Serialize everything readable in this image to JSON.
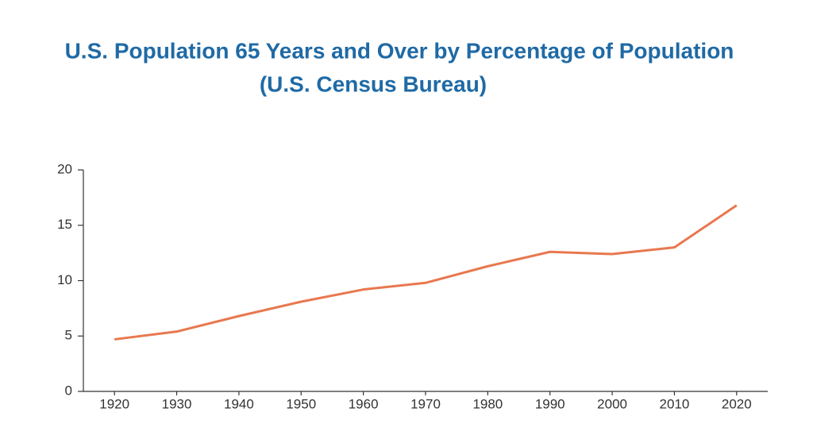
{
  "chart_data": {
    "type": "line",
    "title": "U.S. Population 65 Years and Over by Percentage of Population",
    "subtitle": "(U.S. Census Bureau)",
    "x": [
      1920,
      1930,
      1940,
      1950,
      1960,
      1970,
      1980,
      1990,
      2000,
      2010,
      2020
    ],
    "series": [
      {
        "color": "#e8784f",
        "values": [
          4.7,
          5.4,
          6.8,
          8.1,
          9.2,
          9.8,
          11.3,
          12.6,
          12.4,
          13.0,
          16.8
        ]
      }
    ],
    "xlim": [
      1915,
      2025
    ],
    "xticks": [
      1920,
      1930,
      1940,
      1950,
      1960,
      1970,
      1980,
      1990,
      2000,
      2010,
      2020
    ],
    "ylim": [
      0,
      20
    ],
    "yticks": [
      0,
      5,
      10,
      15,
      20
    ],
    "grid": false
  }
}
